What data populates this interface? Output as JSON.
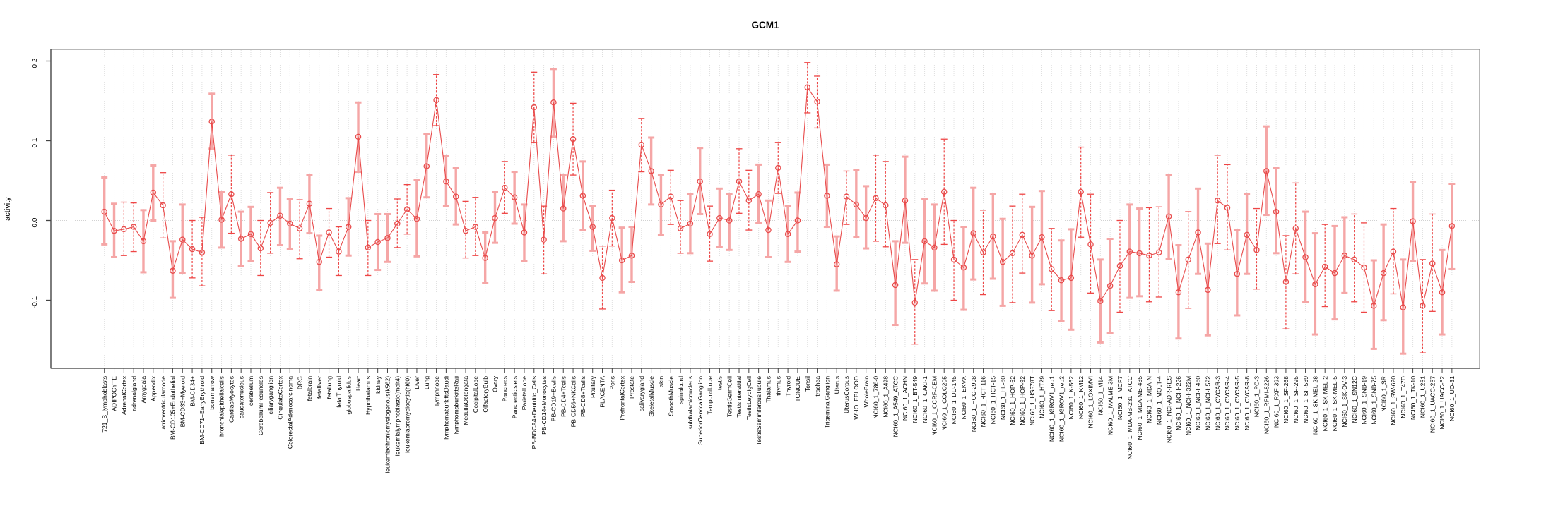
{
  "title": "GCM1",
  "ylabel": "activity",
  "colors": {
    "point": "#e84b4b",
    "line": "#e84b4b",
    "errorbar_dashed": "#ee4545",
    "errorbar_light": "#f5a6a6",
    "grid": "#dedede",
    "zero_line": "#d2d2d2",
    "frame": "#8a8a8a",
    "axis": "#444444",
    "background": "#ffffff"
  },
  "chart_data": {
    "type": "line",
    "title": "GCM1",
    "xlabel": "",
    "ylabel": "activity",
    "ylim": [
      -0.185,
      0.215
    ],
    "yticks": [
      0.2,
      0.1,
      0.0,
      -0.1
    ],
    "grid": "vertical dotted gridline per category; dotted horizontal line at 0",
    "legend": "none",
    "marker": "open-circle",
    "error_bars": true,
    "categories": [
      "721_B_lymphoblasts",
      "ADIPOCYTE",
      "AdrenalCortex",
      "adrenalgland",
      "Amygdala",
      "Appendix",
      "atrioventricularnode",
      "BM-CD105+Endothelial",
      "BM-CD33+Myeloid",
      "BM-CD34+",
      "BM-CD71+EarlyErythroid",
      "bonemarrow",
      "bronchialepithelialcells",
      "CardiacMyocytes",
      "caudatenucleus",
      "cerebellum",
      "CerebellumPeduncles",
      "ciliaryganglion",
      "CingulateCortex",
      "ColorectalAdenocarcinoma",
      "DRG",
      "fetalbrain",
      "fetalliver",
      "fetallung",
      "fetalThyroid",
      "globuspallidus",
      "Heart",
      "Hypothalamus",
      "kidney",
      "leukemiachronicmyelogenous(k562)",
      "leukemialymphoblastic(molt4)",
      "leukemiapromyelocytic(hl60)",
      "Liver",
      "Lung",
      "lymphnode",
      "lymphomaburkittsDaudi",
      "lymphomaburkittsRaji",
      "MedullaOblongata",
      "OccipitalLobe",
      "OlfactoryBulb",
      "Ovary",
      "Pancreas",
      "Pancreaticislets",
      "ParietalLobe",
      "PB-BDCA4+Dentritic_Cells",
      "PB-CD14+Monocytes",
      "PB-CD19+Bcells",
      "PB-CD4+Tcells",
      "PB-CD56+NKCells",
      "PB-CD8+Tcells",
      "Pituitary",
      "PLACENTA",
      "Pons",
      "PrefrontalCortex",
      "Prostate",
      "salivarygland",
      "SkeletalMuscle",
      "skin",
      "SmoothMuscle",
      "spinalcord",
      "subthalamicnucleus",
      "SuperiorCervicalGanglion",
      "TemporalLobe",
      "testis",
      "TestisGermCell",
      "TestisInterstitial",
      "TestisLeydigCell",
      "TestisSeminiferousTubule",
      "Thalamus",
      "thymus",
      "Thyroid",
      "TONGUE",
      "Tonsil",
      "trachea",
      "TrigeminalGanglion",
      "Uterus",
      "UterusCorpus",
      "WHOLEBLOOD",
      "WholeBrain",
      "NCI60_1_786-0",
      "NCI60_1_A498",
      "NCI60_1_A549_ATCC",
      "NCI60_1_ACHN",
      "NCI60_1_BT-549",
      "NCI60_1_CAKI-1",
      "NCI60_1_CCRF-CEM",
      "NCI60_1_COLO205",
      "NCI60_1_DU-145",
      "NCI60_1_EKVX",
      "NCI60_1_HCC-2998",
      "NCI60_1_HCT-116",
      "NCI60_1_HCT-15",
      "NCI60_1_HL-60",
      "NCI60_1_HOP-62",
      "NCI60_1_HOP-92",
      "NCI60_1_HS578T",
      "NCI60_1_HT29",
      "NCI60_1_IGROV1_rep1",
      "NCI60_1_IGROV1_rep2",
      "NCI60_1_K-562",
      "NCI60_1_KM12",
      "NCI60_1_LOXIMVI",
      "NCI60_1_M14",
      "NCI60_1_MALME-3M",
      "NCI60_1_MCF7",
      "NCI60_1_MDA-MB-231_ATCC",
      "NCI60_1_MDA-MB-435",
      "NCI60_1_MDA-N",
      "NCI60_1_MOLT-4",
      "NCI60_1_NCI-ADR-RES",
      "NCI60_1_NCI-H226",
      "NCI60_1_NCI-H322M",
      "NCI60_1_NCI-H460",
      "NCI60_1_NCI-H522",
      "NCI60_1_OVCAR-3",
      "NCI60_1_OVCAR-4",
      "NCI60_1_OVCAR-5",
      "NCI60_1_OVCAR-8",
      "NCI60_1_PC-3",
      "NCI60_1_RPMI-8226",
      "NCI60_1_RXF-393",
      "NCI60_1_SF-268",
      "NCI60_1_SF-295",
      "NCI60_1_SF-539",
      "NCI60_1_SK-MEL-28",
      "NCI60_1_SK-MEL-2",
      "NCI60_1_SK-MEL-5",
      "NCI60_1_SK-OV-3",
      "NCI60_1_SN12C",
      "NCI60_1_SNB-19",
      "NCI60_1_SNB-75",
      "NCI60_1_SR",
      "NCI60_1_SW-620",
      "NCI60_1_T47D",
      "NCI60_1_TK-10",
      "NCI60_1_U251",
      "NCI60_1_UACC-257",
      "NCI60_1_UACC-62",
      "NCI60_1_UO-31"
    ],
    "series": [
      {
        "name": "activity",
        "values": [
          0.011,
          -0.013,
          -0.011,
          -0.008,
          -0.026,
          0.035,
          0.019,
          -0.063,
          -0.024,
          -0.036,
          -0.04,
          0.124,
          0.001,
          0.033,
          -0.023,
          -0.017,
          -0.035,
          -0.003,
          0.006,
          -0.004,
          -0.01,
          0.021,
          -0.052,
          -0.015,
          -0.039,
          -0.008,
          0.105,
          -0.034,
          -0.027,
          -0.022,
          -0.004,
          0.014,
          0.002,
          0.068,
          0.151,
          0.049,
          0.03,
          -0.013,
          -0.008,
          -0.047,
          0.003,
          0.041,
          0.029,
          -0.015,
          0.142,
          -0.024,
          0.148,
          0.015,
          0.102,
          0.031,
          -0.008,
          -0.072,
          0.003,
          -0.05,
          -0.044,
          0.095,
          0.062,
          0.02,
          0.03,
          -0.01,
          -0.004,
          0.049,
          -0.017,
          0.003,
          0.0,
          0.049,
          0.025,
          0.033,
          -0.012,
          0.066,
          -0.017,
          0.0,
          0.167,
          0.149,
          0.031,
          -0.055,
          0.03,
          0.02,
          0.003,
          0.028,
          0.019,
          -0.081,
          0.025,
          -0.103,
          -0.026,
          -0.034,
          0.036,
          -0.049,
          -0.059,
          -0.016,
          -0.04,
          -0.02,
          -0.052,
          -0.041,
          -0.018,
          -0.044,
          -0.021,
          -0.061,
          -0.075,
          -0.072,
          0.036,
          -0.03,
          -0.101,
          -0.082,
          -0.057,
          -0.039,
          -0.041,
          -0.044,
          -0.04,
          0.005,
          -0.09,
          -0.049,
          -0.015,
          -0.087,
          0.025,
          0.016,
          -0.067,
          -0.018,
          -0.037,
          0.062,
          0.011,
          -0.077,
          -0.01,
          -0.046,
          -0.08,
          -0.058,
          -0.066,
          -0.044,
          -0.049,
          -0.059,
          -0.107,
          -0.066,
          -0.039,
          -0.109,
          -0.001,
          -0.107,
          -0.054,
          -0.09,
          -0.007
        ],
        "err_lo": [
          -0.03,
          -0.046,
          -0.044,
          -0.039,
          -0.065,
          0.0,
          -0.022,
          -0.097,
          -0.066,
          -0.072,
          -0.082,
          0.09,
          -0.034,
          -0.016,
          -0.057,
          -0.051,
          -0.069,
          -0.041,
          -0.031,
          -0.036,
          -0.048,
          -0.016,
          -0.087,
          -0.046,
          -0.069,
          -0.044,
          0.061,
          -0.069,
          -0.062,
          -0.052,
          -0.034,
          -0.017,
          -0.045,
          0.029,
          0.119,
          0.018,
          -0.005,
          -0.047,
          -0.044,
          -0.078,
          -0.028,
          0.009,
          -0.004,
          -0.051,
          0.098,
          -0.067,
          0.105,
          -0.026,
          0.057,
          -0.012,
          -0.038,
          -0.111,
          -0.032,
          -0.09,
          -0.077,
          0.061,
          0.02,
          -0.018,
          -0.005,
          -0.041,
          -0.041,
          0.008,
          -0.051,
          -0.033,
          -0.037,
          0.009,
          -0.012,
          -0.003,
          -0.046,
          0.034,
          -0.052,
          -0.039,
          0.135,
          0.116,
          -0.008,
          -0.088,
          -0.005,
          -0.021,
          -0.035,
          -0.026,
          -0.033,
          -0.131,
          -0.028,
          -0.155,
          -0.079,
          -0.088,
          -0.03,
          -0.1,
          -0.112,
          -0.074,
          -0.093,
          -0.073,
          -0.107,
          -0.103,
          -0.066,
          -0.103,
          -0.08,
          -0.113,
          -0.126,
          -0.137,
          -0.021,
          -0.091,
          -0.153,
          -0.141,
          -0.115,
          -0.097,
          -0.095,
          -0.102,
          -0.096,
          -0.048,
          -0.148,
          -0.11,
          -0.067,
          -0.144,
          -0.029,
          -0.037,
          -0.119,
          -0.067,
          -0.086,
          0.007,
          -0.041,
          -0.136,
          -0.067,
          -0.102,
          -0.143,
          -0.108,
          -0.124,
          -0.091,
          -0.102,
          -0.115,
          -0.161,
          -0.125,
          -0.092,
          -0.167,
          -0.051,
          -0.166,
          -0.114,
          -0.143,
          -0.061
        ],
        "err_hi": [
          0.054,
          0.021,
          0.023,
          0.022,
          0.013,
          0.069,
          0.06,
          -0.026,
          0.02,
          0.0,
          0.004,
          0.159,
          0.036,
          0.082,
          0.011,
          0.017,
          0.0,
          0.035,
          0.041,
          0.027,
          0.026,
          0.057,
          -0.019,
          0.015,
          -0.008,
          0.028,
          0.148,
          0.0,
          0.008,
          0.008,
          0.027,
          0.045,
          0.051,
          0.108,
          0.183,
          0.081,
          0.066,
          0.024,
          0.029,
          -0.015,
          0.036,
          0.074,
          0.061,
          0.02,
          0.186,
          0.018,
          0.19,
          0.057,
          0.147,
          0.074,
          0.018,
          -0.032,
          0.038,
          -0.009,
          -0.008,
          0.128,
          0.104,
          0.057,
          0.063,
          0.025,
          0.033,
          0.091,
          0.018,
          0.04,
          0.033,
          0.09,
          0.063,
          0.07,
          0.025,
          0.098,
          0.018,
          0.035,
          0.198,
          0.181,
          0.07,
          -0.02,
          0.062,
          0.063,
          0.043,
          0.082,
          0.074,
          -0.026,
          0.08,
          -0.049,
          0.027,
          0.02,
          0.102,
          0.0,
          -0.008,
          0.041,
          0.013,
          0.033,
          0.002,
          0.018,
          0.033,
          0.017,
          0.037,
          -0.01,
          -0.025,
          -0.011,
          0.092,
          0.033,
          -0.049,
          -0.023,
          0.0,
          0.02,
          0.015,
          0.016,
          0.017,
          0.057,
          -0.031,
          0.011,
          0.04,
          -0.029,
          0.082,
          0.07,
          -0.012,
          0.033,
          0.015,
          0.118,
          0.066,
          -0.019,
          0.047,
          0.011,
          -0.016,
          -0.005,
          -0.007,
          0.004,
          0.008,
          -0.003,
          -0.05,
          -0.005,
          0.015,
          -0.049,
          0.048,
          -0.049,
          0.008,
          -0.037,
          0.046
        ]
      }
    ]
  }
}
